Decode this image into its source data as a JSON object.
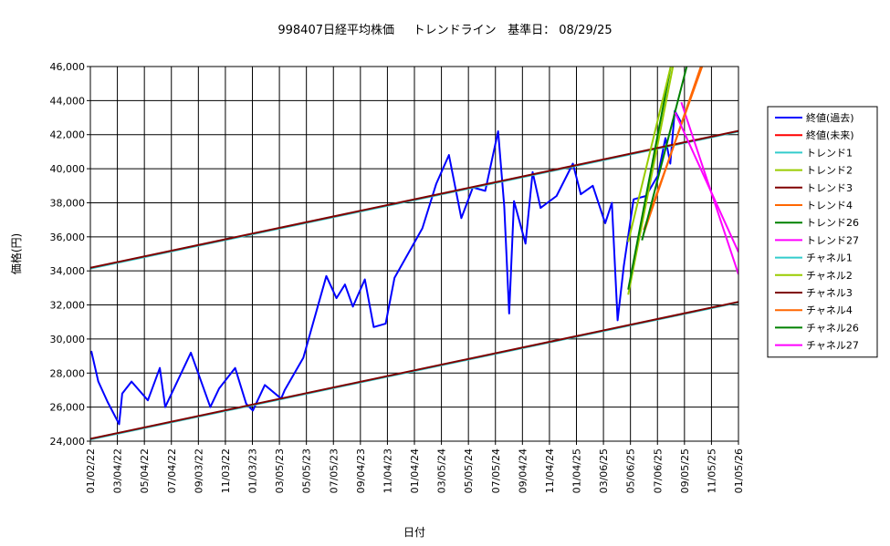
{
  "title_parts": {
    "code": "998407日経平均株価",
    "kind": "トレンドライン",
    "date_label": "基準日：",
    "date": "08/29/25"
  },
  "chart_data": {
    "type": "line",
    "xlabel": "日付",
    "ylabel": "価格(円)",
    "ylim": [
      24000,
      46000
    ],
    "ytick_step": 2000,
    "xlim": [
      "2022-01-02",
      "2026-01-05"
    ],
    "x_ticks": [
      "01/02/22",
      "03/04/22",
      "05/04/22",
      "07/04/22",
      "09/03/22",
      "11/03/22",
      "01/03/23",
      "03/05/23",
      "05/05/23",
      "07/05/23",
      "09/04/23",
      "11/04/23",
      "01/04/24",
      "03/05/24",
      "05/05/24",
      "07/05/24",
      "09/04/24",
      "11/04/24",
      "01/04/25",
      "03/06/25",
      "05/06/25",
      "07/06/25",
      "09/05/25",
      "11/05/25",
      "01/05/26"
    ],
    "grid": true,
    "legend_position": "right",
    "series": [
      {
        "name": "終値(過去)",
        "color": "#0000ff",
        "width": 2,
        "x": [
          "2022-01-04",
          "2022-01-20",
          "2022-02-10",
          "2022-03-08",
          "2022-03-15",
          "2022-04-05",
          "2022-05-12",
          "2022-06-08",
          "2022-06-20",
          "2022-08-17",
          "2022-09-30",
          "2022-10-20",
          "2022-11-25",
          "2022-12-20",
          "2023-01-04",
          "2023-01-31",
          "2023-03-09",
          "2023-03-17",
          "2023-04-28",
          "2023-06-19",
          "2023-07-12",
          "2023-07-31",
          "2023-08-18",
          "2023-09-14",
          "2023-10-04",
          "2023-10-31",
          "2023-11-20",
          "2024-01-22",
          "2024-02-22",
          "2024-03-22",
          "2024-04-19",
          "2024-05-15",
          "2024-06-12",
          "2024-07-11",
          "2024-07-25",
          "2024-08-05",
          "2024-08-16",
          "2024-09-11",
          "2024-09-27",
          "2024-10-15",
          "2024-11-20",
          "2024-12-27",
          "2025-01-14",
          "2025-02-10",
          "2025-03-10",
          "2025-03-25",
          "2025-04-07",
          "2025-04-21",
          "2025-05-13",
          "2025-06-10",
          "2025-07-07",
          "2025-07-24",
          "2025-08-04",
          "2025-08-14",
          "2025-08-29"
        ],
        "y": [
          29300,
          27500,
          26300,
          25000,
          26800,
          27500,
          26400,
          28300,
          26000,
          29200,
          26000,
          27100,
          28300,
          26200,
          25800,
          27300,
          26500,
          27000,
          28900,
          33700,
          32400,
          33200,
          31900,
          33500,
          30700,
          30900,
          33600,
          36500,
          39100,
          40800,
          37100,
          38900,
          38700,
          42200,
          37800,
          31500,
          38100,
          35600,
          39800,
          37700,
          38400,
          40300,
          38500,
          39000,
          36800,
          38000,
          31100,
          34300,
          38200,
          38400,
          39600,
          41800,
          40300,
          43400,
          42700
        ]
      },
      {
        "name": "終値(未来)",
        "color": "#ff0000",
        "width": 1,
        "x": [],
        "y": []
      },
      {
        "name": "トレンド1",
        "color": "#33cccc",
        "width": 2,
        "x": [
          "2022-01-02",
          "2026-01-05"
        ],
        "y": [
          34140,
          42180
        ]
      },
      {
        "name": "トレンド2",
        "color": "#99cc00",
        "width": 2,
        "x": [
          "2025-05-01",
          "2025-08-10"
        ],
        "y": [
          32600,
          46000
        ]
      },
      {
        "name": "トレンド3",
        "color": "#800000",
        "width": 2,
        "x": [
          "2022-01-02",
          "2026-01-05"
        ],
        "y": [
          34180,
          42220
        ]
      },
      {
        "name": "トレンド4",
        "color": "#ff6600",
        "width": 2,
        "x": [
          "2025-06-05",
          "2025-10-12"
        ],
        "y": [
          36200,
          46000
        ]
      },
      {
        "name": "トレンド26",
        "color": "#008000",
        "width": 2,
        "x": [
          "2025-05-01",
          "2025-08-05"
        ],
        "y": [
          32900,
          46000
        ]
      },
      {
        "name": "トレンド27",
        "color": "#ff00ff",
        "width": 2,
        "x": [
          "2025-08-29",
          "2026-01-05"
        ],
        "y": [
          43900,
          33800
        ]
      },
      {
        "name": "チャネル1",
        "color": "#33cccc",
        "width": 2,
        "x": [
          "2022-01-02",
          "2026-01-05"
        ],
        "y": [
          24100,
          32140
        ]
      },
      {
        "name": "チャネル2",
        "color": "#99cc00",
        "width": 2,
        "x": [
          "2025-05-01",
          "2025-08-05"
        ],
        "y": [
          35700,
          46000
        ]
      },
      {
        "name": "チャネル3",
        "color": "#800000",
        "width": 2,
        "x": [
          "2022-01-02",
          "2026-01-05"
        ],
        "y": [
          24140,
          32180
        ]
      },
      {
        "name": "チャネル4",
        "color": "#ff6600",
        "width": 2,
        "x": [
          "2025-06-05",
          "2025-10-15"
        ],
        "y": [
          36400,
          46000
        ]
      },
      {
        "name": "チャネル26",
        "color": "#008000",
        "width": 2,
        "x": [
          "2025-06-01",
          "2025-09-10"
        ],
        "y": [
          35800,
          46000
        ]
      },
      {
        "name": "チャネル27",
        "color": "#ff00ff",
        "width": 2,
        "x": [
          "2025-08-15",
          "2026-01-05"
        ],
        "y": [
          43300,
          35100
        ]
      }
    ]
  }
}
